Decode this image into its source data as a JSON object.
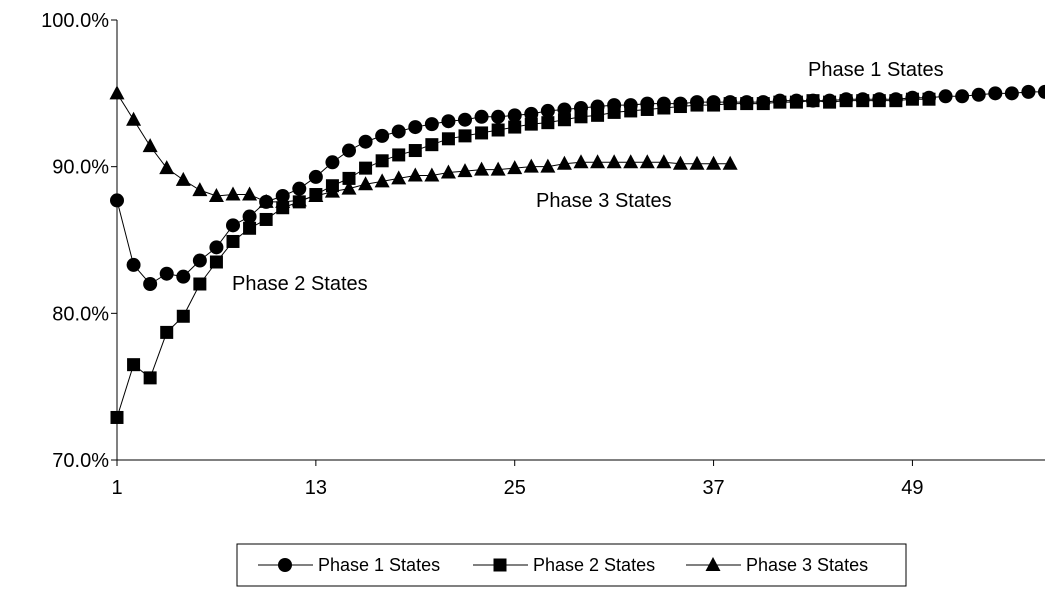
{
  "chart_data": {
    "type": "line",
    "x_ticks": [
      1,
      13,
      25,
      37,
      49
    ],
    "y_ticks": [
      "70.0%",
      "80.0%",
      "90.0%",
      "100.0%"
    ],
    "xlim": [
      1,
      57
    ],
    "ylim": [
      70,
      100
    ],
    "grid": false,
    "legend_position": "bottom",
    "series": [
      {
        "name": "Phase 1 States",
        "marker": "circle",
        "annotation": "Phase 1 States",
        "values": [
          87.7,
          83.3,
          82.0,
          82.7,
          82.5,
          83.6,
          84.5,
          86.0,
          86.6,
          87.6,
          88.0,
          88.5,
          89.3,
          90.3,
          91.1,
          91.7,
          92.1,
          92.4,
          92.7,
          92.9,
          93.1,
          93.2,
          93.4,
          93.4,
          93.5,
          93.6,
          93.8,
          93.9,
          94.0,
          94.1,
          94.2,
          94.2,
          94.3,
          94.3,
          94.3,
          94.4,
          94.4,
          94.4,
          94.4,
          94.4,
          94.5,
          94.5,
          94.5,
          94.5,
          94.6,
          94.6,
          94.6,
          94.6,
          94.7,
          94.7,
          94.8,
          94.8,
          94.9,
          95.0,
          95.0,
          95.1,
          95.1
        ]
      },
      {
        "name": "Phase 2 States",
        "marker": "square",
        "annotation": "Phase 2 States",
        "values": [
          72.9,
          76.5,
          75.6,
          78.7,
          79.8,
          82.0,
          83.5,
          84.9,
          85.8,
          86.4,
          87.2,
          87.6,
          88.1,
          88.7,
          89.2,
          89.9,
          90.4,
          90.8,
          91.1,
          91.5,
          91.9,
          92.1,
          92.3,
          92.5,
          92.7,
          92.9,
          93.0,
          93.2,
          93.4,
          93.5,
          93.7,
          93.8,
          93.9,
          94.0,
          94.1,
          94.2,
          94.2,
          94.3,
          94.3,
          94.3,
          94.4,
          94.4,
          94.5,
          94.4,
          94.5,
          94.5,
          94.5,
          94.5,
          94.6,
          94.6
        ]
      },
      {
        "name": "Phase 3 States",
        "marker": "triangle",
        "annotation": "Phase 3 States",
        "values": [
          95.0,
          93.2,
          91.4,
          89.9,
          89.1,
          88.4,
          88.0,
          88.1,
          88.1,
          87.6,
          87.6,
          87.7,
          88.0,
          88.3,
          88.5,
          88.8,
          89.0,
          89.2,
          89.4,
          89.4,
          89.6,
          89.7,
          89.8,
          89.8,
          89.9,
          90.0,
          90.0,
          90.2,
          90.3,
          90.3,
          90.3,
          90.3,
          90.3,
          90.3,
          90.2,
          90.2,
          90.2,
          90.2
        ]
      }
    ]
  }
}
